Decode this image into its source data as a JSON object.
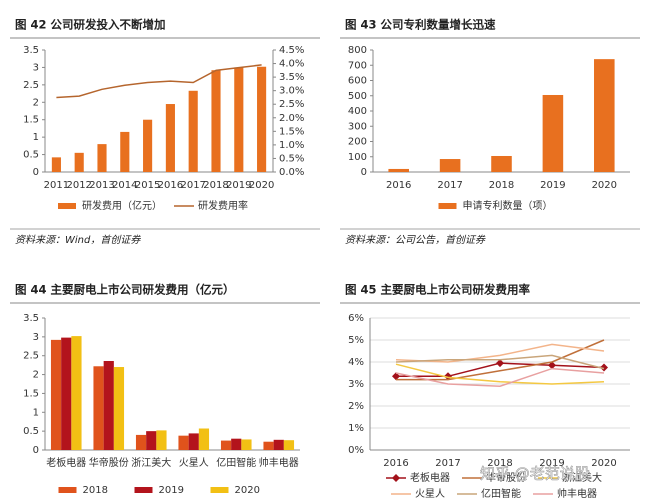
{
  "chart_data": [
    {
      "type": "combo",
      "title": "图 42 公司研发投入不断增加",
      "source": "资料来源：Wind，首创证券",
      "categories": [
        "2011",
        "2012",
        "2013",
        "2014",
        "2015",
        "2016",
        "2017",
        "2018",
        "2019",
        "2020"
      ],
      "series": [
        {
          "name": "研发费用（亿元）",
          "type": "bar",
          "color": "#e8701f",
          "values": [
            0.42,
            0.55,
            0.8,
            1.15,
            1.5,
            1.95,
            2.33,
            2.92,
            3.0,
            3.02
          ]
        },
        {
          "name": "研发费用率",
          "type": "line",
          "axis": "y2",
          "color": "#b5652d",
          "values": [
            2.75,
            2.8,
            3.05,
            3.2,
            3.3,
            3.35,
            3.3,
            3.75,
            3.85,
            3.95
          ]
        }
      ],
      "ylim": [
        0,
        3.5
      ],
      "yticks": [
        0,
        0.5,
        1,
        1.5,
        2,
        2.5,
        3,
        3.5
      ],
      "y2lim": [
        0,
        4.5
      ],
      "y2ticks": [
        {
          "value": 0,
          "label": "0.0%"
        },
        {
          "value": 0.5,
          "label": "0.5%"
        },
        {
          "value": 1,
          "label": "1.0%"
        },
        {
          "value": 1.5,
          "label": "1.5%"
        },
        {
          "value": 2,
          "label": "2.0%"
        },
        {
          "value": 2.5,
          "label": "2.5%"
        },
        {
          "value": 3,
          "label": "3.0%"
        },
        {
          "value": 3.5,
          "label": "3.5%"
        },
        {
          "value": 4,
          "label": "4.0%"
        },
        {
          "value": 4.5,
          "label": "4.5%"
        }
      ],
      "grid": false
    },
    {
      "type": "bar",
      "title": "图 43 公司专利数量增长迅速",
      "source": "资料来源：公司公告，首创证券",
      "categories": [
        "2016",
        "2017",
        "2018",
        "2019",
        "2020"
      ],
      "series": [
        {
          "name": "申请专利数量（项）",
          "type": "bar",
          "color": "#e8701f",
          "values": [
            20,
            85,
            105,
            505,
            740
          ]
        }
      ],
      "ylim": [
        0,
        800
      ],
      "yticks": [
        0,
        100,
        200,
        300,
        400,
        500,
        600,
        700,
        800
      ],
      "grid": false
    },
    {
      "type": "bar",
      "title": "图 44 主要厨电上市公司研发费用（亿元）",
      "categories": [
        "老板电器",
        "华帝股份",
        "浙江美大",
        "火星人",
        "亿田智能",
        "帅丰电器"
      ],
      "series": [
        {
          "name": "2018",
          "type": "bar",
          "color": "#e0531c",
          "values": [
            2.92,
            2.22,
            0.4,
            0.38,
            0.25,
            0.22
          ]
        },
        {
          "name": "2019",
          "type": "bar",
          "color": "#b3141c",
          "values": [
            2.98,
            2.36,
            0.5,
            0.44,
            0.3,
            0.27
          ]
        },
        {
          "name": "2020",
          "type": "bar",
          "color": "#f2c014",
          "values": [
            3.02,
            2.2,
            0.52,
            0.57,
            0.28,
            0.26
          ]
        }
      ],
      "ylim": [
        0,
        3.5
      ],
      "yticks": [
        0,
        0.5,
        1,
        1.5,
        2,
        2.5,
        3,
        3.5
      ],
      "grid": false
    },
    {
      "type": "line",
      "title": "图 45 主要厨电上市公司研发费用率",
      "categories": [
        "2016",
        "2017",
        "2018",
        "2019",
        "2020"
      ],
      "series": [
        {
          "name": "老板电器",
          "type": "line",
          "marker": "diamond",
          "color": "#a3111a",
          "values": [
            3.35,
            3.35,
            3.95,
            3.85,
            3.75
          ]
        },
        {
          "name": "华帝股份",
          "type": "line",
          "color": "#c0703a",
          "values": [
            3.2,
            3.2,
            3.6,
            4.0,
            5.0
          ]
        },
        {
          "name": "浙江美大",
          "type": "line",
          "color": "#f4c842",
          "values": [
            3.9,
            3.3,
            3.1,
            3.0,
            3.1
          ]
        },
        {
          "name": "火星人",
          "type": "line",
          "color": "#f3b48a",
          "values": [
            4.1,
            4.0,
            4.3,
            4.8,
            4.5
          ]
        },
        {
          "name": "亿田智能",
          "type": "line",
          "color": "#c9a57a",
          "values": [
            4.0,
            4.1,
            4.1,
            4.3,
            3.7
          ]
        },
        {
          "name": "帅丰电器",
          "type": "line",
          "color": "#e8a0a0",
          "values": [
            3.5,
            3.0,
            2.9,
            3.7,
            3.5
          ]
        }
      ],
      "ylim": [
        0,
        6
      ],
      "yticks": [
        {
          "value": 0,
          "label": "0%"
        },
        {
          "value": 1,
          "label": "1%"
        },
        {
          "value": 2,
          "label": "2%"
        },
        {
          "value": 3,
          "label": "3%"
        },
        {
          "value": 4,
          "label": "4%"
        },
        {
          "value": 5,
          "label": "5%"
        },
        {
          "value": 6,
          "label": "6%"
        }
      ],
      "grid": true
    }
  ],
  "watermark": "知乎 @老范说股"
}
